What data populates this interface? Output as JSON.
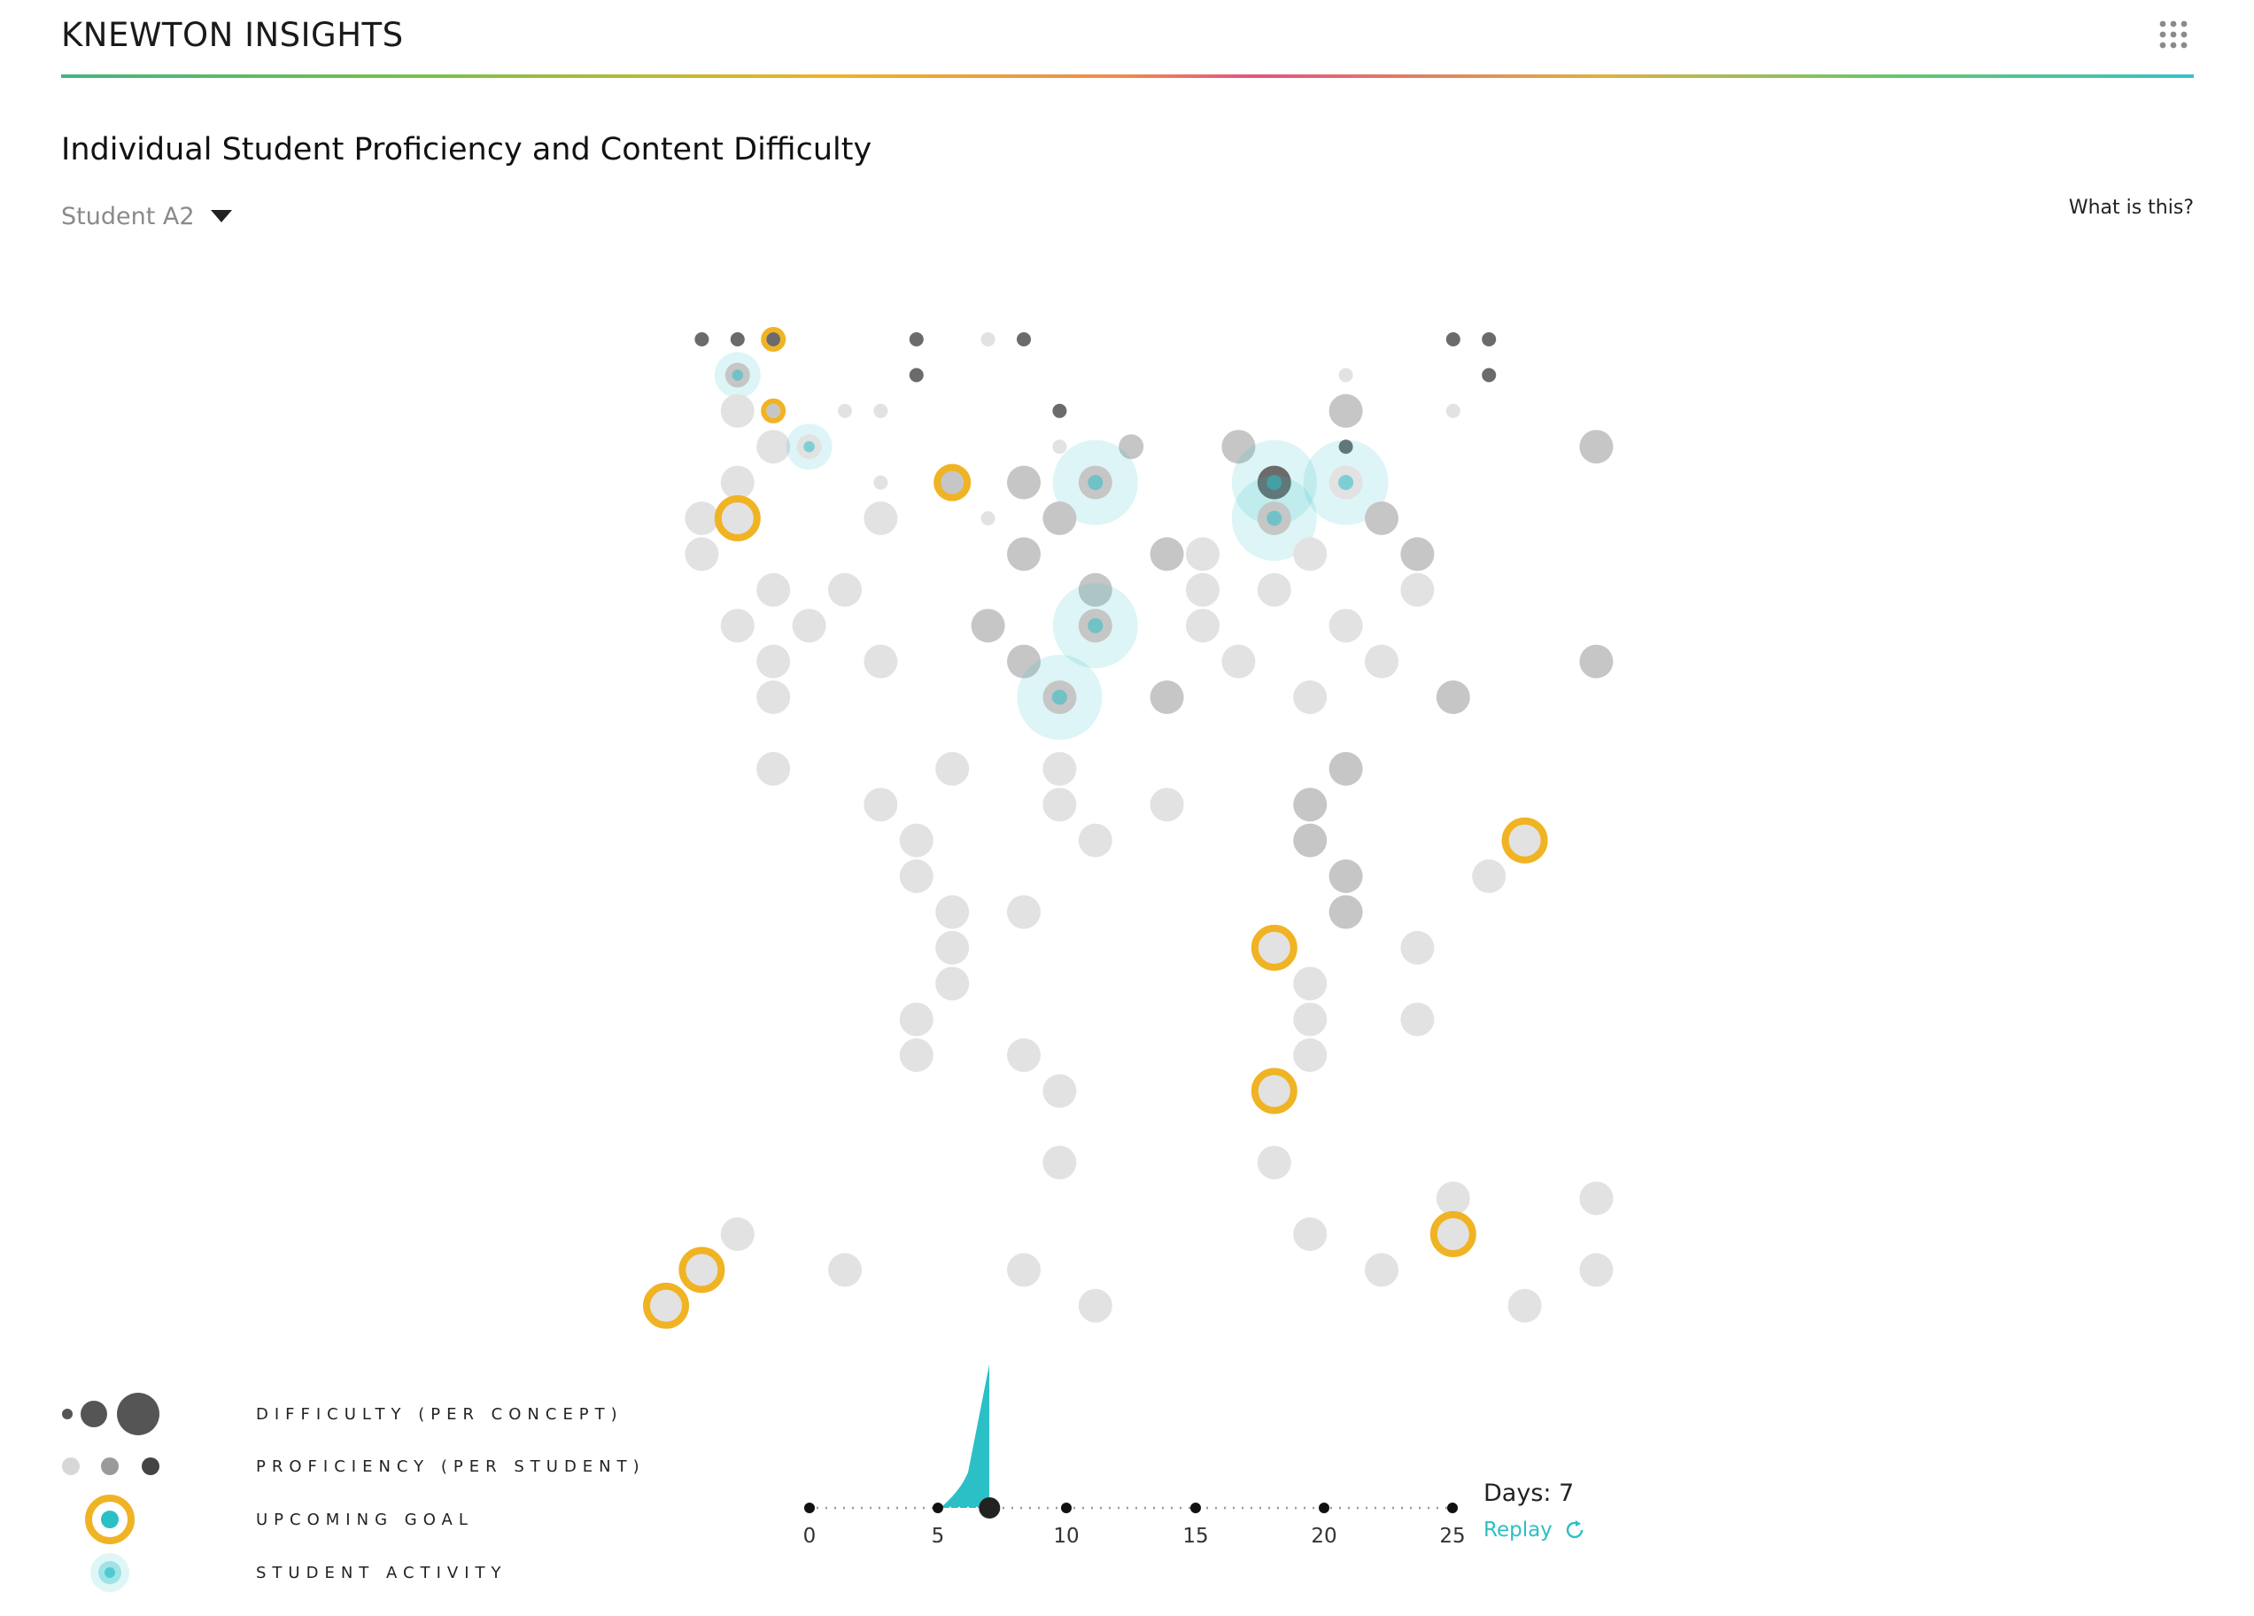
{
  "header": {
    "brand": "KNEWTON INSIGHTS",
    "apps_icon": "grid-icon"
  },
  "page": {
    "title": "Individual Student Proficiency and Content Difficulty",
    "help_link": "What is this?"
  },
  "student_select": {
    "value": "Student A2",
    "icon": "caret-down-icon"
  },
  "colors": {
    "goal": "#f0b323",
    "activity": "#2bc0c6",
    "prof_low": "#e2e2e2",
    "prof_mid": "#c6c6c6",
    "prof_high": "#a5a5a5",
    "dark": "#6b6b6b"
  },
  "legend": [
    {
      "label": "DIFFICULTY (PER CONCEPT)"
    },
    {
      "label": "PROFICIENCY (PER STUDENT)"
    },
    {
      "label": "UPCOMING GOAL"
    },
    {
      "label": "STUDENT ACTIVITY"
    }
  ],
  "timeline": {
    "ticks": [
      "0",
      "5",
      "10",
      "15",
      "20",
      "25"
    ],
    "current_day": 7,
    "days_label": "Days: 7",
    "replay_label": "Replay"
  },
  "concept_grid": {
    "columns": 27,
    "rows": 28,
    "nodes": [
      [
        1,
        0,
        "s",
        3
      ],
      [
        2,
        0,
        "s",
        3
      ],
      [
        3,
        0,
        "s",
        3,
        "g"
      ],
      [
        7,
        0,
        "s",
        3
      ],
      [
        9,
        0,
        "s",
        1
      ],
      [
        10,
        0,
        "s",
        3
      ],
      [
        22,
        0,
        "s",
        3
      ],
      [
        23,
        0,
        "s",
        3
      ],
      [
        2,
        1,
        "m",
        2,
        "a"
      ],
      [
        7,
        1,
        "s",
        3
      ],
      [
        19,
        1,
        "s",
        1
      ],
      [
        23,
        1,
        "s",
        3
      ],
      [
        2,
        2,
        "l",
        1
      ],
      [
        3,
        2,
        "s",
        2,
        "g"
      ],
      [
        5,
        2,
        "s",
        1
      ],
      [
        6,
        2,
        "s",
        1
      ],
      [
        11,
        2,
        "s",
        3
      ],
      [
        19,
        2,
        "l",
        2
      ],
      [
        22,
        2,
        "s",
        1
      ],
      [
        3,
        3,
        "l",
        1
      ],
      [
        4,
        3,
        "m",
        1,
        "a"
      ],
      [
        11,
        3,
        "s",
        1
      ],
      [
        13,
        3,
        "m",
        2
      ],
      [
        16,
        3,
        "l",
        2
      ],
      [
        19,
        3,
        "s",
        3
      ],
      [
        26,
        3,
        "l",
        2
      ],
      [
        2,
        4,
        "l",
        1
      ],
      [
        6,
        4,
        "s",
        1
      ],
      [
        8,
        4,
        "m",
        2,
        "g"
      ],
      [
        10,
        4,
        "l",
        2
      ],
      [
        12,
        4,
        "l",
        2,
        "a"
      ],
      [
        17,
        4,
        "l",
        3,
        "a"
      ],
      [
        19,
        4,
        "l",
        1,
        "a"
      ],
      [
        1,
        5,
        "l",
        1
      ],
      [
        2,
        5,
        "l",
        1,
        "g"
      ],
      [
        6,
        5,
        "l",
        1
      ],
      [
        9,
        5,
        "s",
        1
      ],
      [
        11,
        5,
        "l",
        2
      ],
      [
        17,
        5,
        "l",
        2,
        "a"
      ],
      [
        20,
        5,
        "l",
        2
      ],
      [
        1,
        6,
        "l",
        1
      ],
      [
        10,
        6,
        "l",
        2
      ],
      [
        14,
        6,
        "l",
        2
      ],
      [
        15,
        6,
        "l",
        1
      ],
      [
        18,
        6,
        "l",
        1
      ],
      [
        21,
        6,
        "l",
        2
      ],
      [
        3,
        7,
        "l",
        1
      ],
      [
        5,
        7,
        "l",
        1
      ],
      [
        12,
        7,
        "l",
        2
      ],
      [
        15,
        7,
        "l",
        1
      ],
      [
        17,
        7,
        "l",
        1
      ],
      [
        21,
        7,
        "l",
        1
      ],
      [
        2,
        8,
        "l",
        1
      ],
      [
        4,
        8,
        "l",
        1
      ],
      [
        9,
        8,
        "l",
        2
      ],
      [
        12,
        8,
        "l",
        2,
        "a"
      ],
      [
        15,
        8,
        "l",
        1
      ],
      [
        19,
        8,
        "l",
        1
      ],
      [
        3,
        9,
        "l",
        1
      ],
      [
        6,
        9,
        "l",
        1
      ],
      [
        10,
        9,
        "l",
        2
      ],
      [
        16,
        9,
        "l",
        1
      ],
      [
        20,
        9,
        "l",
        1
      ],
      [
        26,
        9,
        "l",
        2
      ],
      [
        3,
        10,
        "l",
        1
      ],
      [
        11,
        10,
        "l",
        2,
        "a"
      ],
      [
        14,
        10,
        "l",
        2
      ],
      [
        18,
        10,
        "l",
        1
      ],
      [
        22,
        10,
        "l",
        2
      ],
      [
        3,
        12,
        "l",
        1
      ],
      [
        8,
        12,
        "l",
        1
      ],
      [
        11,
        12,
        "l",
        1
      ],
      [
        19,
        12,
        "l",
        2
      ],
      [
        6,
        13,
        "l",
        1
      ],
      [
        11,
        13,
        "l",
        1
      ],
      [
        14,
        13,
        "l",
        1
      ],
      [
        18,
        13,
        "l",
        2
      ],
      [
        7,
        14,
        "l",
        1
      ],
      [
        12,
        14,
        "l",
        1
      ],
      [
        18,
        14,
        "l",
        2
      ],
      [
        24,
        14,
        "l",
        1,
        "g"
      ],
      [
        7,
        15,
        "l",
        1
      ],
      [
        19,
        15,
        "l",
        2
      ],
      [
        23,
        15,
        "l",
        1
      ],
      [
        8,
        16,
        "l",
        1
      ],
      [
        10,
        16,
        "l",
        1
      ],
      [
        19,
        16,
        "l",
        2
      ],
      [
        8,
        17,
        "l",
        1
      ],
      [
        17,
        17,
        "l",
        1,
        "g"
      ],
      [
        21,
        17,
        "l",
        1
      ],
      [
        8,
        18,
        "l",
        1
      ],
      [
        18,
        18,
        "l",
        1
      ],
      [
        7,
        19,
        "l",
        1
      ],
      [
        18,
        19,
        "l",
        1
      ],
      [
        21,
        19,
        "l",
        1
      ],
      [
        7,
        20,
        "l",
        1
      ],
      [
        10,
        20,
        "l",
        1
      ],
      [
        18,
        20,
        "l",
        1
      ],
      [
        11,
        21,
        "l",
        1
      ],
      [
        17,
        21,
        "l",
        1,
        "g"
      ],
      [
        11,
        23,
        "l",
        1
      ],
      [
        17,
        23,
        "l",
        1
      ],
      [
        22,
        24,
        "l",
        1
      ],
      [
        26,
        24,
        "l",
        1
      ],
      [
        2,
        25,
        "l",
        1
      ],
      [
        18,
        25,
        "l",
        1
      ],
      [
        22,
        25,
        "l",
        1,
        "g"
      ],
      [
        1,
        26,
        "l",
        1,
        "g"
      ],
      [
        5,
        26,
        "l",
        1
      ],
      [
        10,
        26,
        "l",
        1
      ],
      [
        20,
        26,
        "l",
        1
      ],
      [
        26,
        26,
        "l",
        1
      ],
      [
        0,
        27,
        "l",
        1,
        "g"
      ],
      [
        12,
        27,
        "l",
        1
      ],
      [
        24,
        27,
        "l",
        1
      ]
    ]
  }
}
